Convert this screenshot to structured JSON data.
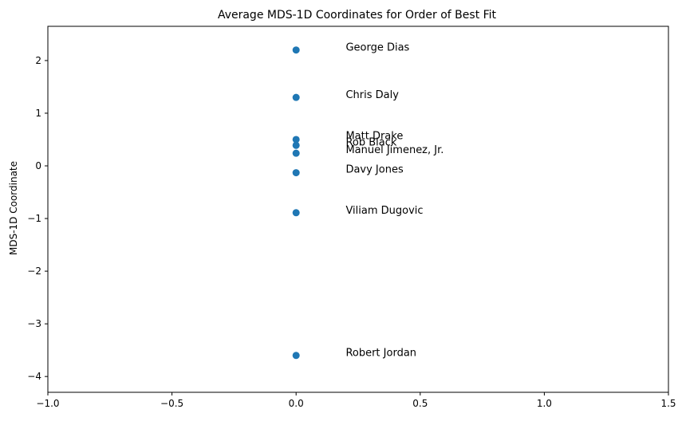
{
  "chart_data": {
    "type": "scatter",
    "title": "Average MDS-1D Coordinates for Order of Best Fit",
    "xlabel": "",
    "ylabel": "MDS-1D Coordinate",
    "xlim": [
      -1.0,
      1.5
    ],
    "ylim": [
      -4.3,
      2.65
    ],
    "xticks": [
      -1.0,
      -0.5,
      0.0,
      0.5,
      1.0,
      1.5
    ],
    "xtick_labels": [
      "−1.0",
      "−0.5",
      "0.0",
      "0.5",
      "1.0",
      "1.5"
    ],
    "yticks": [
      2,
      1,
      0,
      -1,
      -2,
      -3,
      -4
    ],
    "ytick_labels": [
      "2",
      "1",
      "0",
      "−1",
      "−2",
      "−3",
      "−4"
    ],
    "grid": false,
    "marker_color": "#1f77b4",
    "points": [
      {
        "x": 0.0,
        "y": 2.2,
        "label": "George Dias",
        "label_y": 2.25
      },
      {
        "x": 0.0,
        "y": 1.3,
        "label": "Chris Daly",
        "label_y": 1.35
      },
      {
        "x": 0.0,
        "y": 0.5,
        "label": "Matt Drake",
        "label_y": 0.57
      },
      {
        "x": 0.0,
        "y": 0.39,
        "label": "Rob Black",
        "label_y": 0.45
      },
      {
        "x": 0.0,
        "y": 0.24,
        "label": "Manuel Jimenez, Jr.",
        "label_y": 0.3
      },
      {
        "x": 0.0,
        "y": -0.13,
        "label": "Davy Jones",
        "label_y": -0.07
      },
      {
        "x": 0.0,
        "y": -0.89,
        "label": "Viliam Dugovic",
        "label_y": -0.85
      },
      {
        "x": 0.0,
        "y": -3.6,
        "label": "Robert Jordan",
        "label_y": -3.55
      }
    ]
  }
}
